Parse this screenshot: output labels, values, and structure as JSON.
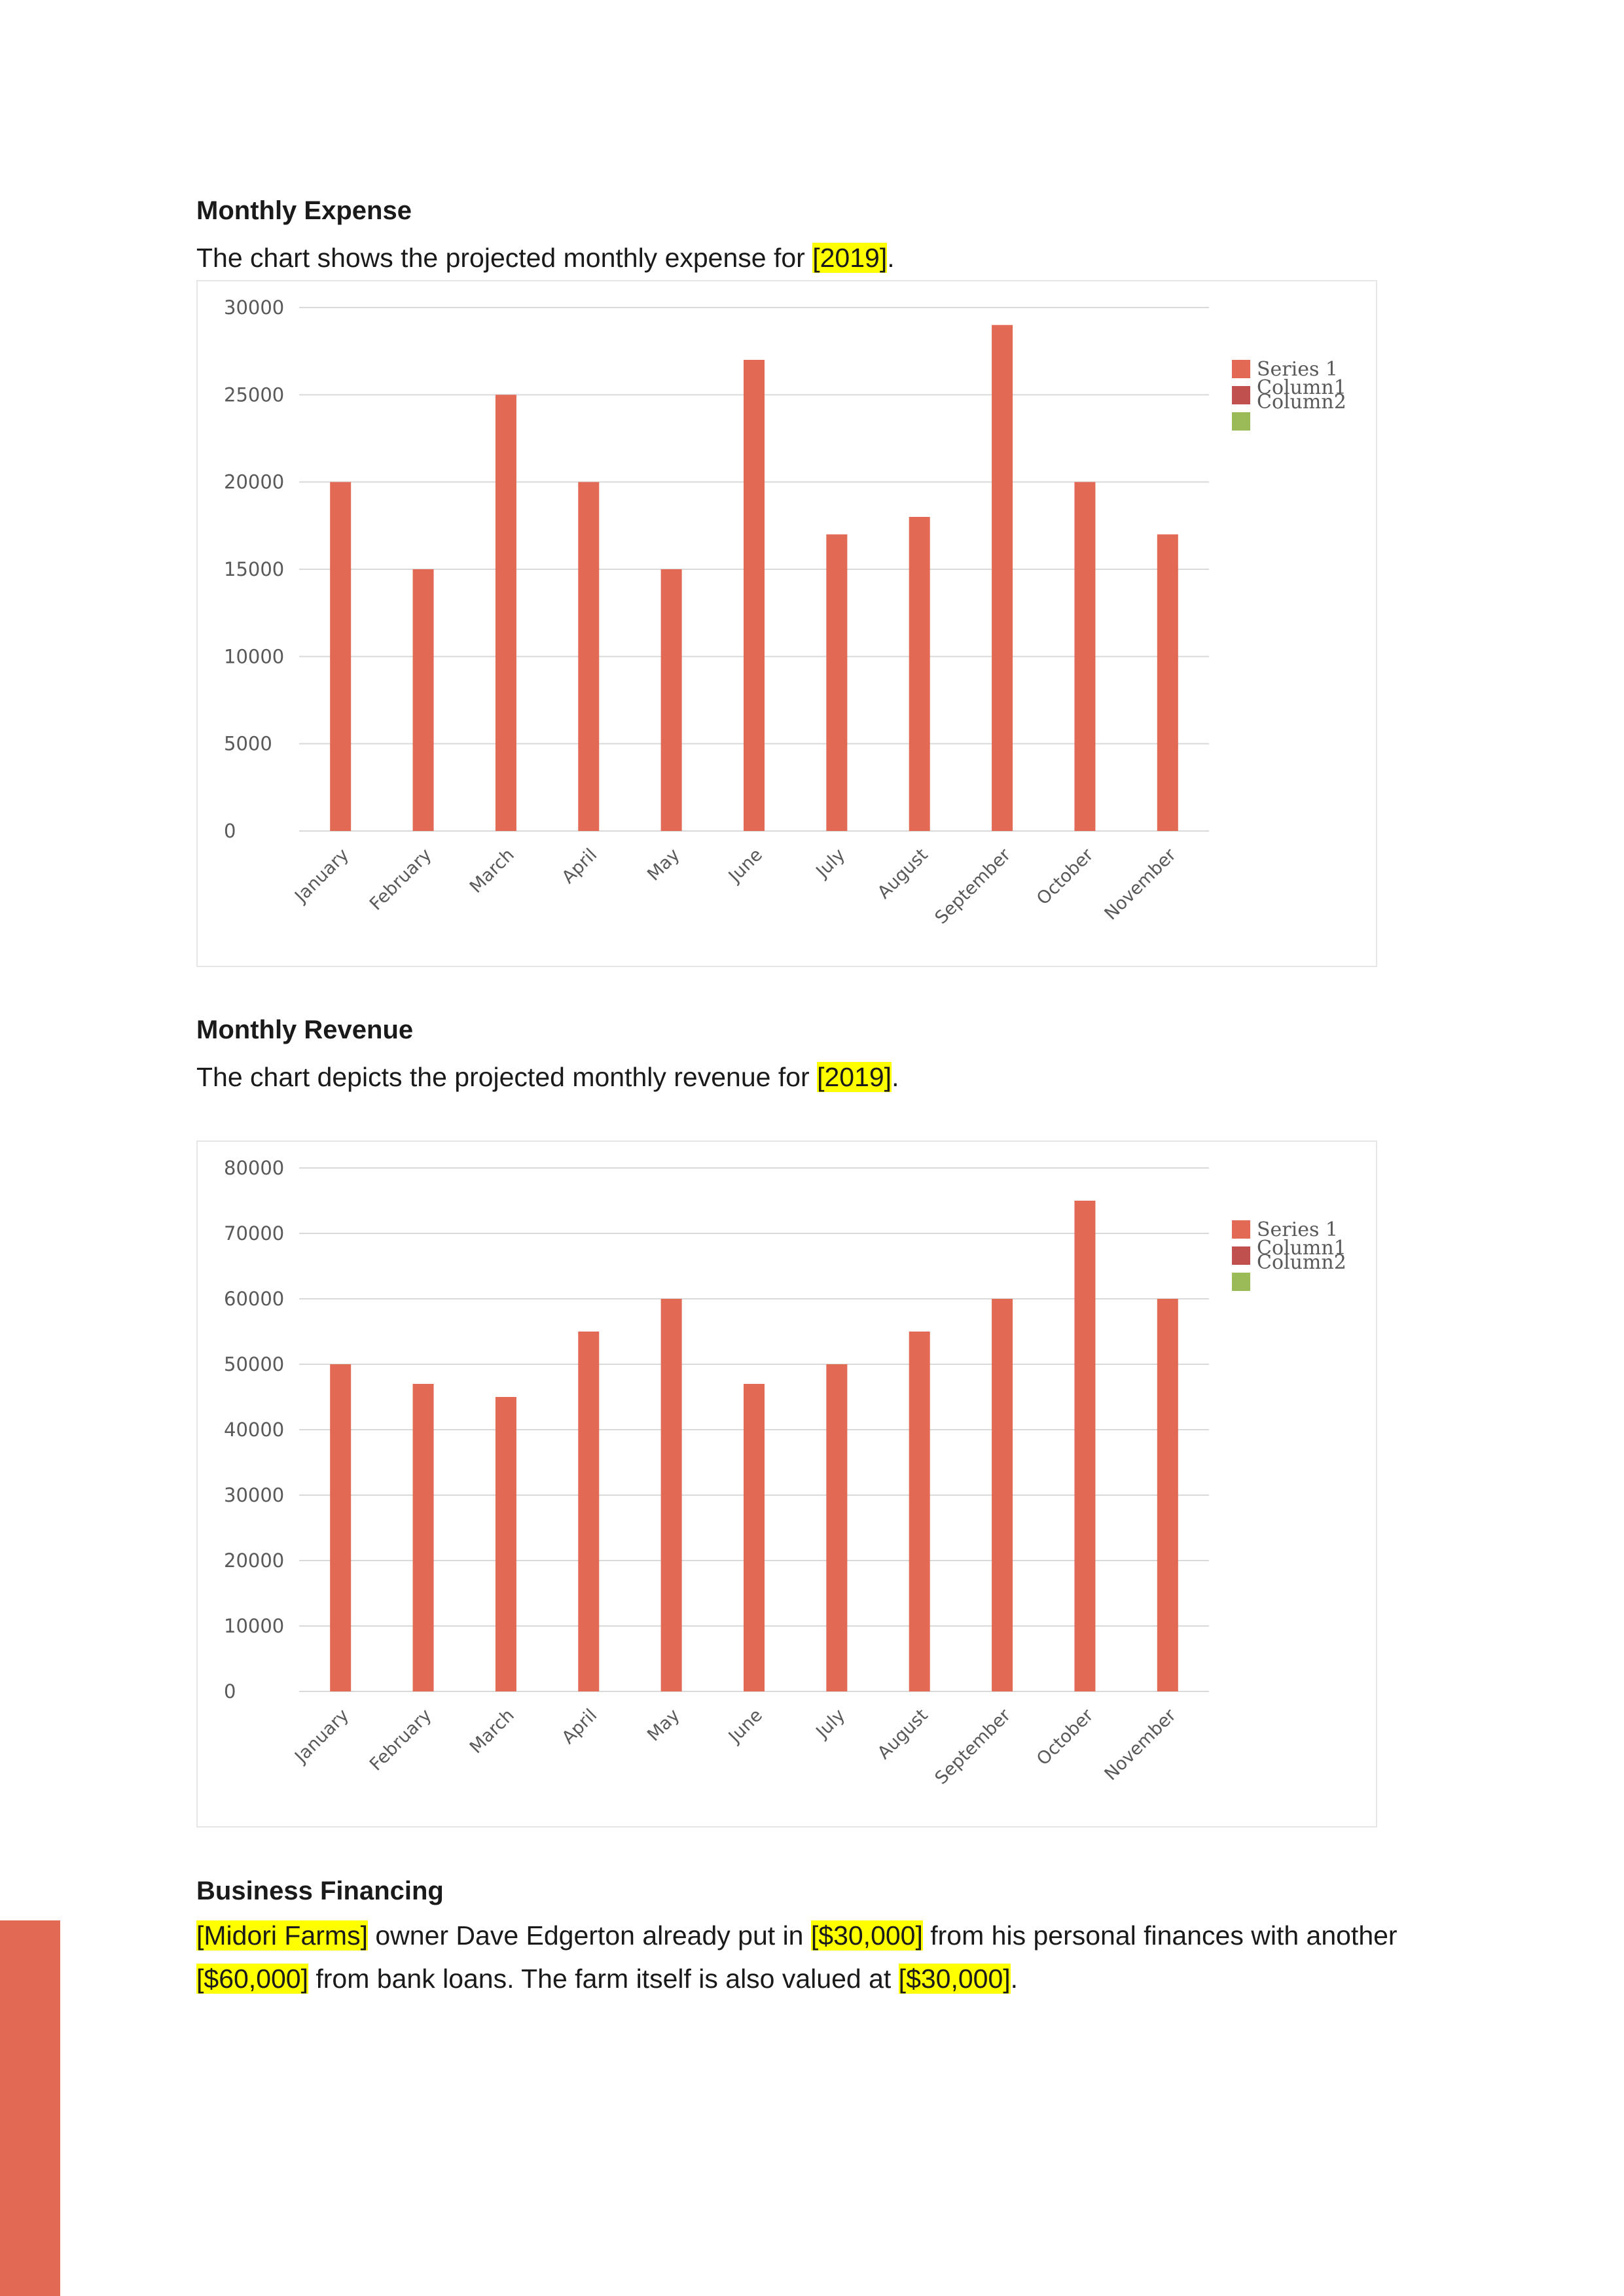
{
  "sections": {
    "expense": {
      "heading": "Monthly Expense",
      "text_before": "The chart shows the projected monthly expense for ",
      "highlight": "[2019]",
      "text_after": "."
    },
    "revenue": {
      "heading": "Monthly Revenue",
      "text_before": "The chart depicts the projected monthly revenue for ",
      "highlight": "[2019]",
      "text_after": "."
    },
    "financing": {
      "heading": "Business Financing",
      "line1": {
        "h1": "[Midori Farms]",
        "t1": " owner Dave Edgerton already put in ",
        "h2": "[$30,000]",
        "t2": " from his personal finances with another"
      },
      "line2": {
        "h1": "[$60,000]",
        "t1": " from bank loans. The farm itself is also valued at ",
        "h2": "[$30,000]",
        "t2": "."
      }
    }
  },
  "colors": {
    "series1": "#e26a55",
    "column1": "#c0504d",
    "column2": "#9bbb59",
    "gridline": "#d9d9d9",
    "accent_bar": "#e26a55"
  },
  "chart_data": [
    {
      "type": "bar",
      "title": "",
      "xlabel": "",
      "ylabel": "",
      "categories": [
        "January",
        "February",
        "March",
        "April",
        "May",
        "June",
        "July",
        "August",
        "September",
        "October",
        "November"
      ],
      "series": [
        {
          "name": "Series 1",
          "values": [
            20000,
            15000,
            25000,
            20000,
            15000,
            27000,
            17000,
            18000,
            29000,
            20000,
            17000
          ]
        }
      ],
      "legend_entries": [
        "Series 1",
        "Column1",
        "Column2"
      ],
      "yticks": [
        "0",
        "5000",
        "10000",
        "15000",
        "20000",
        "25000",
        "30000"
      ],
      "ylim": [
        0,
        30000
      ],
      "grid": true,
      "legend_position": "right"
    },
    {
      "type": "bar",
      "title": "",
      "xlabel": "",
      "ylabel": "",
      "categories": [
        "January",
        "February",
        "March",
        "April",
        "May",
        "June",
        "July",
        "August",
        "September",
        "October",
        "November"
      ],
      "series": [
        {
          "name": "Series 1",
          "values": [
            50000,
            47000,
            45000,
            55000,
            60000,
            47000,
            50000,
            55000,
            60000,
            75000,
            60000
          ]
        }
      ],
      "legend_entries": [
        "Series 1",
        "Column1",
        "Column2"
      ],
      "yticks": [
        "0",
        "10000",
        "20000",
        "30000",
        "40000",
        "50000",
        "60000",
        "70000",
        "80000"
      ],
      "ylim": [
        0,
        80000
      ],
      "grid": true,
      "legend_position": "right"
    }
  ]
}
